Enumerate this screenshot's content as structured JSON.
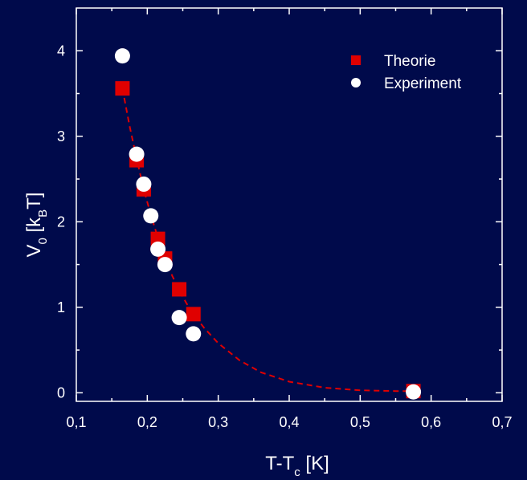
{
  "chart_data": {
    "type": "scatter",
    "background": "#000a4b",
    "axis_color": "#ffffff",
    "xlim": [
      0.1,
      0.7
    ],
    "ylim": [
      -0.1,
      4.5
    ],
    "x_ticks": [
      0.1,
      0.2,
      0.3,
      0.4,
      0.5,
      0.6,
      0.7
    ],
    "x_tick_labels": [
      "0,1",
      "0,2",
      "0,3",
      "0,4",
      "0,5",
      "0,6",
      "0,7"
    ],
    "y_ticks": [
      0,
      1,
      2,
      3,
      4
    ],
    "y_tick_labels": [
      "0",
      "1",
      "2",
      "3",
      "4"
    ],
    "xlabel": {
      "main": "T-T",
      "sub": "c",
      "tail": " [K]"
    },
    "ylabel": {
      "v": "V",
      "sub0": "0",
      "mid": " [k",
      "subB": "B",
      "tail": "T]"
    },
    "grid": false,
    "legend_position": "top-right",
    "series": [
      {
        "name": "Theorie",
        "marker": "square",
        "color": "#e00000",
        "x": [
          0.165,
          0.185,
          0.195,
          0.215,
          0.225,
          0.245,
          0.265,
          0.575
        ],
        "y": [
          3.56,
          2.72,
          2.38,
          1.8,
          1.57,
          1.21,
          0.92,
          0.02
        ]
      },
      {
        "name": "Experiment",
        "marker": "circle",
        "color": "#ffffff",
        "x": [
          0.165,
          0.185,
          0.195,
          0.205,
          0.215,
          0.225,
          0.245,
          0.265,
          0.575
        ],
        "y": [
          3.94,
          2.79,
          2.44,
          2.07,
          1.68,
          1.5,
          0.88,
          0.69,
          0.01
        ]
      }
    ],
    "fit_curve": {
      "style": "dashed",
      "color": "#e00000",
      "x": [
        0.165,
        0.175,
        0.185,
        0.195,
        0.205,
        0.215,
        0.225,
        0.235,
        0.245,
        0.255,
        0.265,
        0.28,
        0.3,
        0.33,
        0.36,
        0.4,
        0.45,
        0.5,
        0.55,
        0.575
      ],
      "y": [
        3.56,
        3.12,
        2.74,
        2.38,
        2.08,
        1.81,
        1.57,
        1.37,
        1.2,
        1.05,
        0.92,
        0.76,
        0.58,
        0.38,
        0.24,
        0.13,
        0.06,
        0.03,
        0.02,
        0.02
      ]
    }
  }
}
